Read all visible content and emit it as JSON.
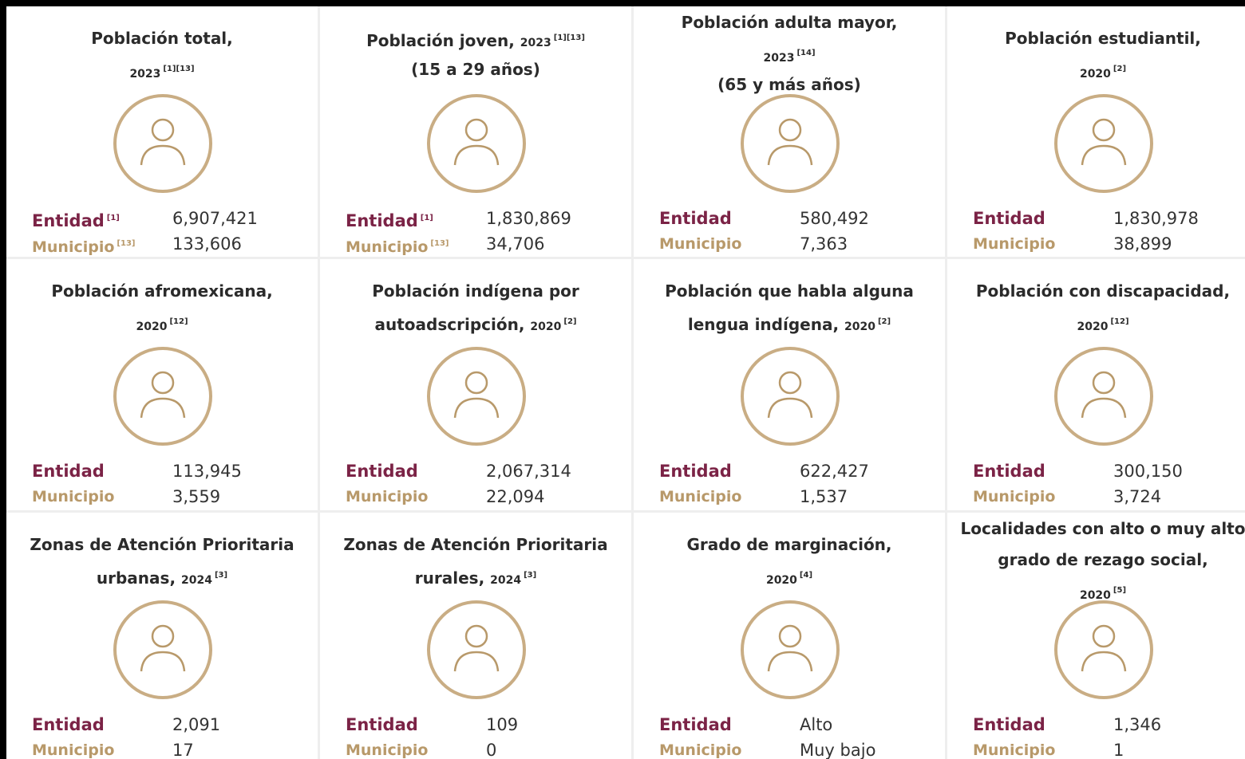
{
  "cards": [
    {
      "title": [
        {
          "text": "Población total,"
        },
        {
          "year": "2023",
          "refs": "[1][13]"
        }
      ],
      "rows": [
        {
          "label": "Entidad",
          "ref": "[1]",
          "value": "6,907,421"
        },
        {
          "label": "Municipio",
          "ref": "[13]",
          "value": "133,606"
        }
      ]
    },
    {
      "title": [
        {
          "text": "Población joven,",
          "year": "2023",
          "refs": "[1][13]"
        },
        {
          "text": "(15 a 29 años)"
        }
      ],
      "rows": [
        {
          "label": "Entidad",
          "ref": "[1]",
          "value": "1,830,869"
        },
        {
          "label": "Municipio",
          "ref": "[13]",
          "value": "34,706"
        }
      ]
    },
    {
      "title": [
        {
          "text": "Población adulta mayor,"
        },
        {
          "year": "2023",
          "refs": "[14]"
        },
        {
          "text": "(65 y más años)"
        }
      ],
      "rows": [
        {
          "label": "Entidad",
          "value": "580,492"
        },
        {
          "label": "Municipio",
          "value": "7,363"
        }
      ]
    },
    {
      "title": [
        {
          "text": "Población estudiantil,"
        },
        {
          "year": "2020",
          "refs": "[2]"
        }
      ],
      "rows": [
        {
          "label": "Entidad",
          "value": "1,830,978"
        },
        {
          "label": "Municipio",
          "value": "38,899"
        }
      ]
    },
    {
      "title": [
        {
          "text": "Población afromexicana,"
        },
        {
          "year": "2020",
          "refs": "[12]"
        }
      ],
      "rows": [
        {
          "label": "Entidad",
          "value": "113,945"
        },
        {
          "label": "Municipio",
          "value": "3,559"
        }
      ]
    },
    {
      "title": [
        {
          "text": "Población indígena por"
        },
        {
          "text": "autoadscripción,",
          "year": "2020",
          "refs": "[2]"
        }
      ],
      "rows": [
        {
          "label": "Entidad",
          "value": "2,067,314"
        },
        {
          "label": "Municipio",
          "value": "22,094"
        }
      ]
    },
    {
      "title": [
        {
          "text": "Población que habla alguna"
        },
        {
          "text": "lengua indígena,",
          "year": "2020",
          "refs": "[2]"
        }
      ],
      "rows": [
        {
          "label": "Entidad",
          "value": "622,427"
        },
        {
          "label": "Municipio",
          "value": "1,537"
        }
      ]
    },
    {
      "title": [
        {
          "text": "Población con discapacidad,"
        },
        {
          "year": "2020",
          "refs": "[12]"
        }
      ],
      "rows": [
        {
          "label": "Entidad",
          "value": "300,150"
        },
        {
          "label": "Municipio",
          "value": "3,724"
        }
      ]
    },
    {
      "title": [
        {
          "text": "Zonas de Atención Prioritaria"
        },
        {
          "text": "urbanas,",
          "year": "2024",
          "refs": "[3]"
        }
      ],
      "rows": [
        {
          "label": "Entidad",
          "value": "2,091"
        },
        {
          "label": "Municipio",
          "value": "17"
        }
      ]
    },
    {
      "title": [
        {
          "text": "Zonas de Atención Prioritaria"
        },
        {
          "text": "rurales,",
          "year": "2024",
          "refs": "[3]"
        }
      ],
      "rows": [
        {
          "label": "Entidad",
          "value": "109"
        },
        {
          "label": "Municipio",
          "value": "0"
        }
      ]
    },
    {
      "title": [
        {
          "text": "Grado de marginación,"
        },
        {
          "year": "2020",
          "refs": "[4]"
        }
      ],
      "rows": [
        {
          "label": "Entidad",
          "value": "Alto"
        },
        {
          "label": "Municipio",
          "value": "Muy bajo"
        }
      ]
    },
    {
      "title": [
        {
          "text": "Localidades con alto o muy alto"
        },
        {
          "text": "grado de rezago social,"
        },
        {
          "year": "2020",
          "refs": "[5]"
        }
      ],
      "rows": [
        {
          "label": "Entidad",
          "value": "1,346"
        },
        {
          "label": "Municipio",
          "value": "1"
        }
      ]
    }
  ]
}
